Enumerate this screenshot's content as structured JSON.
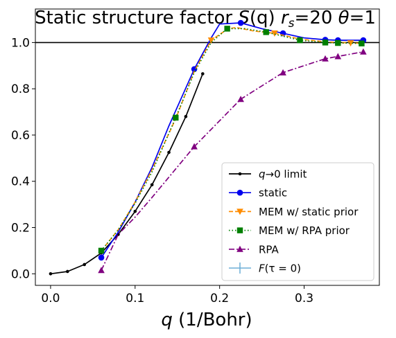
{
  "chart_data": {
    "type": "line",
    "title": "Static structure factor S(q) r_s=20 θ=1",
    "title_parts": {
      "prefix": "Static structure factor ",
      "symbol": "S",
      "arg": "(q) ",
      "r": "r",
      "r_sub": "s",
      "r_val": "=20 ",
      "theta": "θ",
      "theta_val": "=1"
    },
    "xlabel_parts": {
      "symbol": "q",
      "unit": " (1/Bohr)"
    },
    "ylabel": "",
    "xlim": [
      -0.018,
      0.389
    ],
    "ylim": [
      -0.05,
      1.145
    ],
    "xticks": [
      0.0,
      0.1,
      0.2,
      0.3
    ],
    "xtick_labels": [
      "0.0",
      "0.1",
      "0.2",
      "0.3"
    ],
    "yticks": [
      0.0,
      0.2,
      0.4,
      0.6,
      0.8,
      1.0
    ],
    "ytick_labels": [
      "0.0",
      "0.2",
      "0.4",
      "0.6",
      "0.8",
      "1.0"
    ],
    "hline": 1.0,
    "grid": false,
    "legend_position": "lower-right",
    "series": [
      {
        "name": "q→0 limit",
        "legend_math": {
          "q": "q",
          "rest": "→0 limit"
        },
        "color": "#000000",
        "style": "solid",
        "marker": "dot",
        "x": [
          0.0,
          0.02,
          0.04,
          0.06,
          0.08,
          0.1,
          0.12,
          0.14,
          0.16,
          0.18
        ],
        "y": [
          0.0,
          0.01,
          0.04,
          0.09,
          0.17,
          0.27,
          0.385,
          0.525,
          0.68,
          0.865
        ]
      },
      {
        "name": "static",
        "color": "#0000ee",
        "style": "solid",
        "marker": "circle",
        "x": [
          0.06,
          0.08,
          0.1,
          0.12,
          0.14,
          0.17,
          0.19,
          0.2,
          0.225,
          0.25,
          0.275,
          0.3,
          0.325,
          0.34,
          0.37
        ],
        "y": [
          0.07,
          0.18,
          0.31,
          0.46,
          0.64,
          0.885,
          1.02,
          1.08,
          1.085,
          1.06,
          1.04,
          1.02,
          1.012,
          1.01,
          1.01
        ],
        "marker_x": [
          0.06,
          0.17,
          0.225,
          0.275,
          0.325,
          0.34,
          0.37
        ],
        "marker_y": [
          0.07,
          0.885,
          1.085,
          1.04,
          1.012,
          1.01,
          1.01
        ]
      },
      {
        "name": "MEM w/ static prior",
        "color": "#ff8c00",
        "style": "dashed",
        "marker": "triangle-down",
        "x": [
          0.06,
          0.08,
          0.1,
          0.12,
          0.148,
          0.17,
          0.19,
          0.21,
          0.22,
          0.24,
          0.265,
          0.295,
          0.325,
          0.355,
          0.368
        ],
        "y": [
          0.1,
          0.19,
          0.31,
          0.45,
          0.67,
          0.875,
          1.01,
          1.06,
          1.065,
          1.05,
          1.04,
          1.015,
          1.003,
          0.998,
          0.997
        ],
        "marker_x": [
          0.19,
          0.265,
          0.355
        ],
        "marker_y": [
          1.01,
          1.04,
          0.998
        ]
      },
      {
        "name": "MEM w/ RPA prior",
        "color": "#007f00",
        "style": "dotted",
        "marker": "square",
        "x": [
          0.06,
          0.08,
          0.1,
          0.12,
          0.148,
          0.17,
          0.19,
          0.209,
          0.23,
          0.255,
          0.295,
          0.325,
          0.34,
          0.368
        ],
        "y": [
          0.1,
          0.19,
          0.305,
          0.44,
          0.675,
          0.87,
          1.0,
          1.06,
          1.06,
          1.045,
          1.01,
          1.0,
          0.998,
          0.996
        ],
        "marker_x": [
          0.06,
          0.148,
          0.209,
          0.255,
          0.295,
          0.325,
          0.34,
          0.368
        ],
        "marker_y": [
          0.1,
          0.675,
          1.06,
          1.045,
          1.01,
          1.0,
          0.998,
          0.996
        ]
      },
      {
        "name": "RPA",
        "color": "#800080",
        "style": "dashdot",
        "marker": "triangle-up",
        "x": [
          0.06,
          0.08,
          0.1,
          0.12,
          0.17,
          0.225,
          0.275,
          0.325,
          0.34,
          0.37
        ],
        "y": [
          0.015,
          0.17,
          0.245,
          0.33,
          0.55,
          0.755,
          0.87,
          0.93,
          0.94,
          0.96
        ],
        "marker_x": [
          0.06,
          0.17,
          0.225,
          0.275,
          0.325,
          0.34,
          0.37
        ],
        "marker_y": [
          0.015,
          0.55,
          0.755,
          0.87,
          0.93,
          0.94,
          0.96
        ]
      },
      {
        "name": "F(τ=0)",
        "legend_math": {
          "q": "F",
          "rest": "(τ = 0)"
        },
        "color": "#6baed6",
        "style": "errorbar",
        "marker": "none",
        "x": [],
        "y": []
      }
    ]
  }
}
